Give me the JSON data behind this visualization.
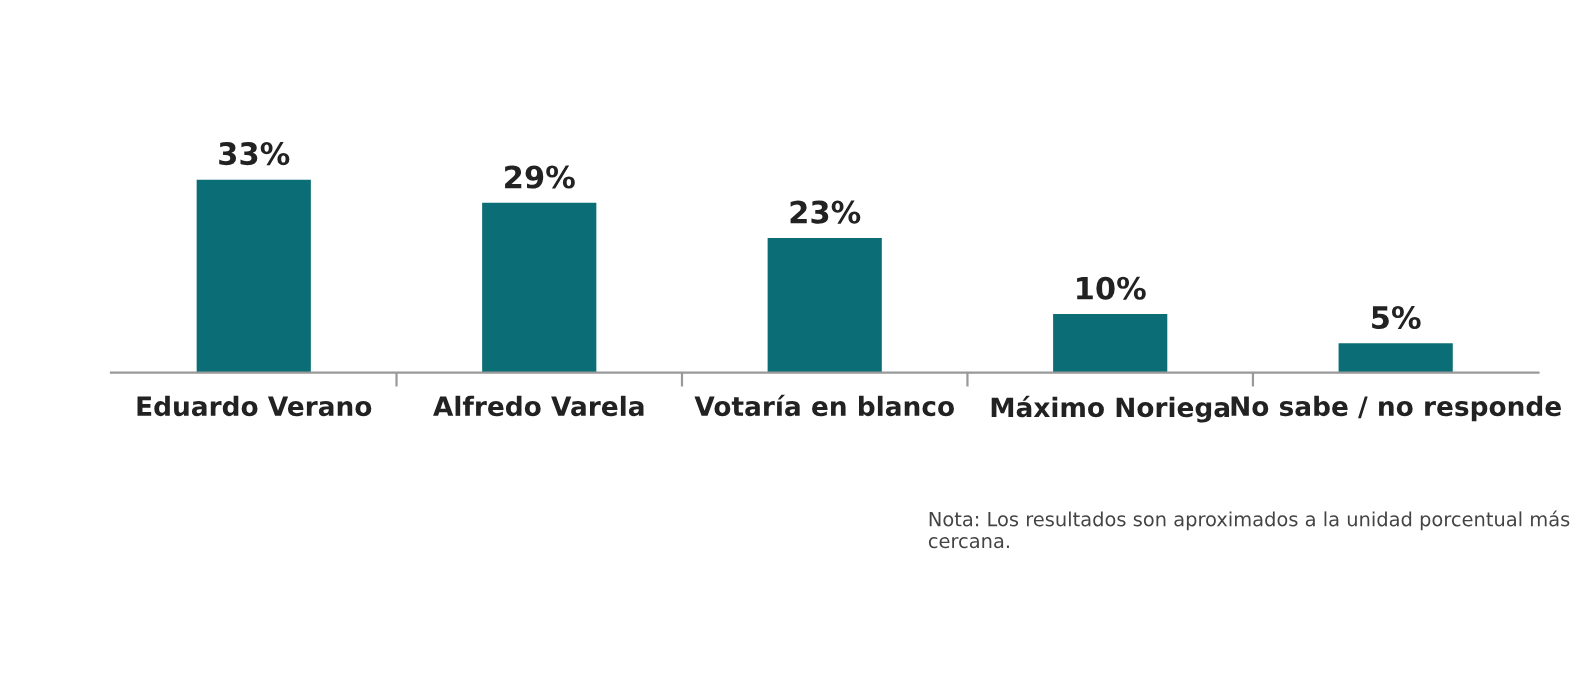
{
  "chart_data": {
    "type": "bar",
    "categories": [
      "Eduardo Verano",
      "Alfredo Varela",
      "Votaría en blanco",
      "Máximo Noriega",
      "No sabe / no responde"
    ],
    "values": [
      33,
      29,
      23,
      10,
      5
    ],
    "color": "#0b6e76",
    "data_labels": true,
    "value_labels": [
      "33%",
      "29%",
      "23%",
      "10%",
      "5%"
    ],
    "grid": false,
    "legend": false,
    "annotations": [
      "Nota: Los resultados son aproximados a la unidad porcentual más cercana."
    ]
  }
}
